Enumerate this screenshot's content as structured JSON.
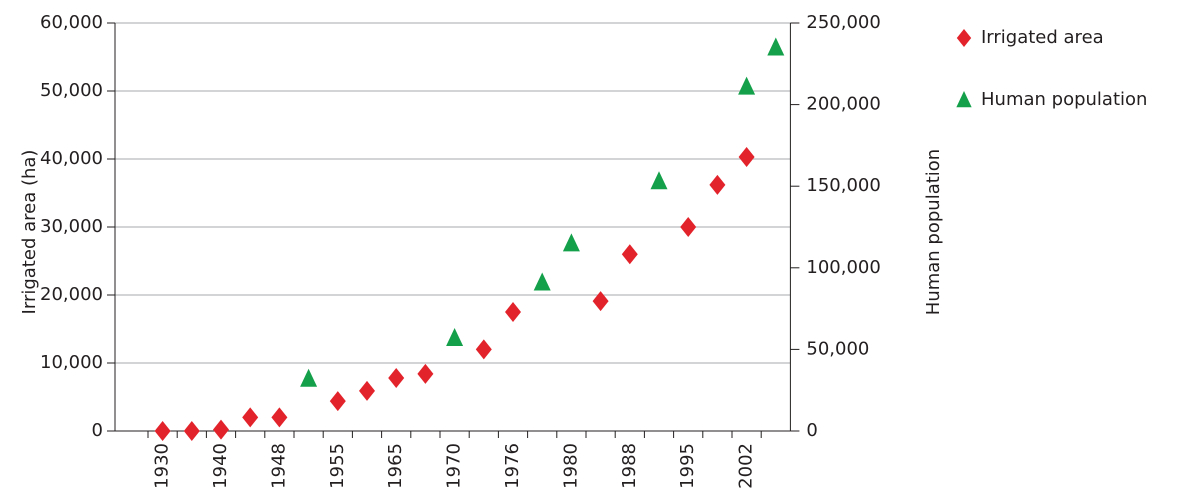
{
  "chart_data": {
    "type": "scatter",
    "categories": [
      "1930",
      null,
      "1940",
      null,
      "1948",
      null,
      "1955",
      null,
      "1965",
      null,
      "1970",
      null,
      "1976",
      null,
      "1980",
      null,
      "1988",
      null,
      "1995",
      null,
      "2002",
      null
    ],
    "series": [
      {
        "name": "Irrigated area",
        "color": "#e3232b",
        "marker": "diamond",
        "values": [
          0,
          0,
          200,
          2000,
          2000,
          null,
          4400,
          5900,
          7800,
          8400,
          null,
          12000,
          17500,
          null,
          null,
          19100,
          26000,
          null,
          30000,
          36200,
          40300,
          null
        ]
      },
      {
        "name": "Human population",
        "color": "#14a04b",
        "marker": "triangle",
        "axis": "y2",
        "values": [
          null,
          null,
          null,
          null,
          null,
          32000,
          null,
          null,
          null,
          null,
          57000,
          null,
          null,
          91000,
          115000,
          null,
          null,
          153000,
          null,
          null,
          211000,
          235000
        ]
      }
    ],
    "y_label": "Irrigated area (ha)",
    "y2_label": "Human population",
    "ylim": [
      0,
      60000
    ],
    "yticks": [
      0,
      {
        "value": 10000,
        "label": "10,000"
      },
      {
        "value": 20000,
        "label": "20,000"
      },
      {
        "value": 30000,
        "label": "30,000"
      },
      {
        "value": 40000,
        "label": "40,000"
      },
      {
        "value": 50000,
        "label": "50,000"
      },
      {
        "value": 60000,
        "label": "60,000"
      }
    ],
    "y2lim": [
      0,
      250000
    ],
    "y2ticks": [
      0,
      {
        "value": 50000,
        "label": "50,000"
      },
      {
        "value": 100000,
        "label": "100,000"
      },
      {
        "value": 150000,
        "label": "150,000"
      },
      {
        "value": 200000,
        "label": "200,000"
      },
      {
        "value": 250000,
        "label": "250,000"
      }
    ],
    "grid": true
  }
}
